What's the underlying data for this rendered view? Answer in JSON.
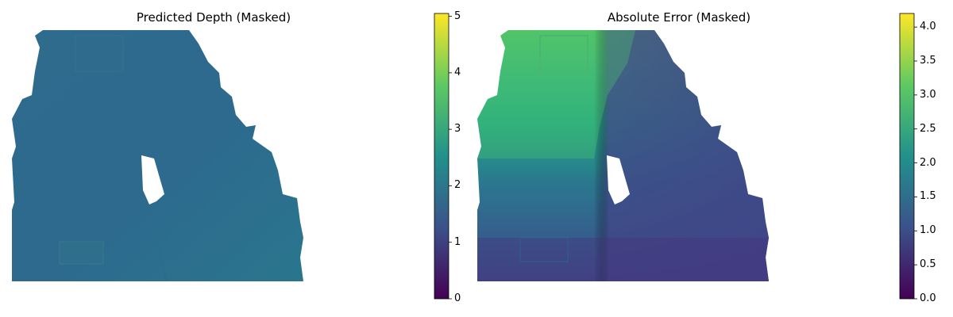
{
  "chart_data": [
    {
      "type": "heatmap",
      "title": "Predicted Depth (Masked)",
      "axes": "off",
      "colormap": "viridis",
      "colorbar": {
        "range": [
          0,
          5.05
        ],
        "ticks": [
          0,
          1,
          2,
          3,
          4,
          5
        ],
        "tick_labels": [
          "0",
          "1",
          "2",
          "3",
          "4",
          "5"
        ]
      },
      "value_range_shown": [
        1.3,
        1.8
      ]
    },
    {
      "type": "heatmap",
      "title": "Absolute Error (Masked)",
      "axes": "off",
      "colormap": "viridis",
      "colorbar": {
        "range": [
          0,
          4.2
        ],
        "ticks": [
          0.0,
          0.5,
          1.0,
          1.5,
          2.0,
          2.5,
          3.0,
          3.5,
          4.0
        ],
        "tick_labels": [
          "0.0",
          "0.5",
          "1.0",
          "1.5",
          "2.0",
          "2.5",
          "3.0",
          "3.5",
          "4.0"
        ]
      },
      "value_range_shown": [
        0.6,
        3.4
      ]
    }
  ],
  "colors": {
    "viridis_0": "#440154",
    "viridis_25": "#3b528b",
    "viridis_50": "#21918c",
    "viridis_75": "#5ec962",
    "viridis_100": "#fde725"
  }
}
